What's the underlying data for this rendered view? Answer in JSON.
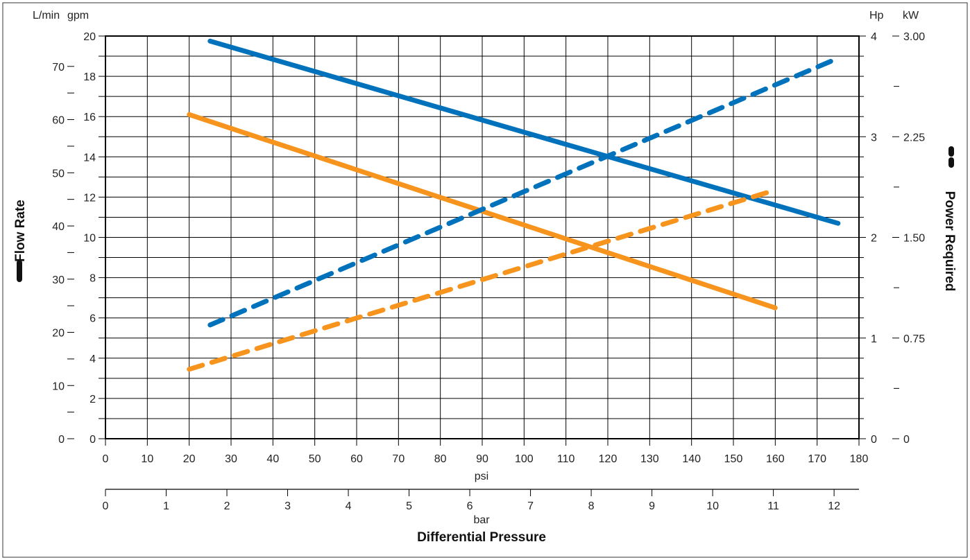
{
  "chart_data": {
    "type": "line",
    "x_axis": {
      "label": "psi",
      "range": [
        0,
        180
      ],
      "ticks": [
        0,
        10,
        20,
        30,
        40,
        50,
        60,
        70,
        80,
        90,
        100,
        110,
        120,
        130,
        140,
        150,
        160,
        170,
        180
      ]
    },
    "x2_axis": {
      "label": "bar",
      "range": [
        0,
        12.41
      ],
      "ticks": [
        0,
        1,
        2,
        3,
        4,
        5,
        6,
        7,
        8,
        9,
        10,
        11,
        12
      ]
    },
    "x_title": "Differential Pressure",
    "y_left_gpm": {
      "unit": "gpm",
      "range": [
        0,
        20
      ],
      "ticks": [
        0,
        2,
        4,
        6,
        8,
        10,
        12,
        14,
        16,
        18,
        20
      ]
    },
    "y_left_lmin": {
      "unit": "L/min",
      "ticks": [
        0,
        10,
        20,
        30,
        40,
        50,
        60,
        70
      ]
    },
    "y_left_title": "Flow Rate",
    "y_right_hp": {
      "unit": "Hp",
      "range": [
        0,
        4
      ],
      "ticks": [
        0,
        1,
        2,
        3,
        4
      ]
    },
    "y_right_kw": {
      "unit": "kW",
      "ticks": [
        "0",
        "0.75",
        "1.50",
        "2.25",
        "3.00"
      ]
    },
    "y_right_title": "Power Required",
    "grid": true,
    "colors": {
      "blue": "#0072bc",
      "orange": "#f7941d"
    },
    "series": [
      {
        "axis": "flow_gpm",
        "style": "solid",
        "color": "#0072bc",
        "x": [
          25,
          175
        ],
        "y": [
          19.75,
          10.7
        ]
      },
      {
        "axis": "flow_gpm",
        "style": "solid",
        "color": "#f7941d",
        "x": [
          20,
          160
        ],
        "y": [
          16.1,
          6.5
        ]
      },
      {
        "axis": "power_hp",
        "style": "dashed",
        "color": "#0072bc",
        "x": [
          25,
          175
        ],
        "y": [
          1.13,
          3.78
        ]
      },
      {
        "axis": "power_hp",
        "style": "dashed",
        "color": "#f7941d",
        "x": [
          20,
          160
        ],
        "y": [
          0.69,
          2.47
        ]
      }
    ]
  }
}
